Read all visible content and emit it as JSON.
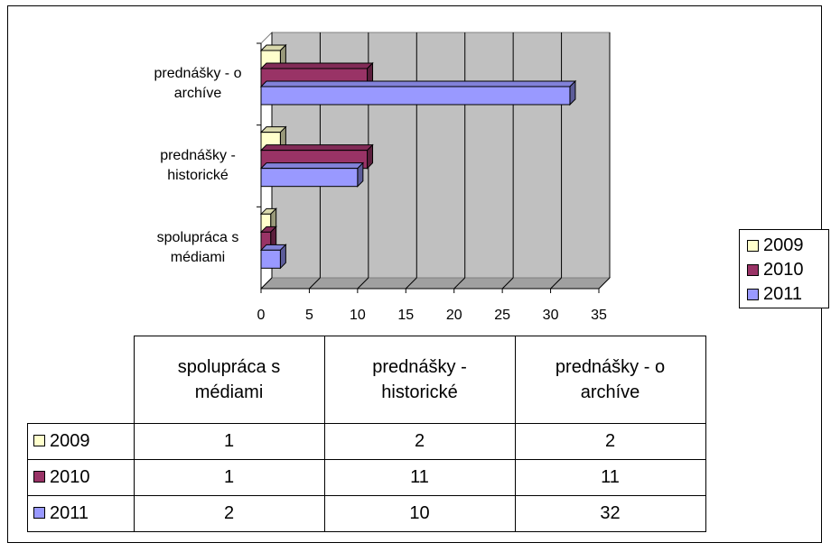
{
  "chart_data": {
    "type": "bar",
    "orientation": "horizontal",
    "categories": [
      "spolupráca s médiami",
      "prednášky - historické",
      "prednášky - o archíve"
    ],
    "series": [
      {
        "name": "2009",
        "color": "#FFFFCC",
        "values": [
          1,
          2,
          2
        ]
      },
      {
        "name": "2010",
        "color": "#993366",
        "values": [
          1,
          11,
          11
        ]
      },
      {
        "name": "2011",
        "color": "#9999FF",
        "values": [
          2,
          10,
          32
        ]
      }
    ],
    "xlim": [
      0,
      35
    ],
    "xticks": [
      0,
      5,
      10,
      15,
      20,
      25,
      30,
      35
    ],
    "grid": true,
    "legend": "right",
    "data_table": true
  }
}
